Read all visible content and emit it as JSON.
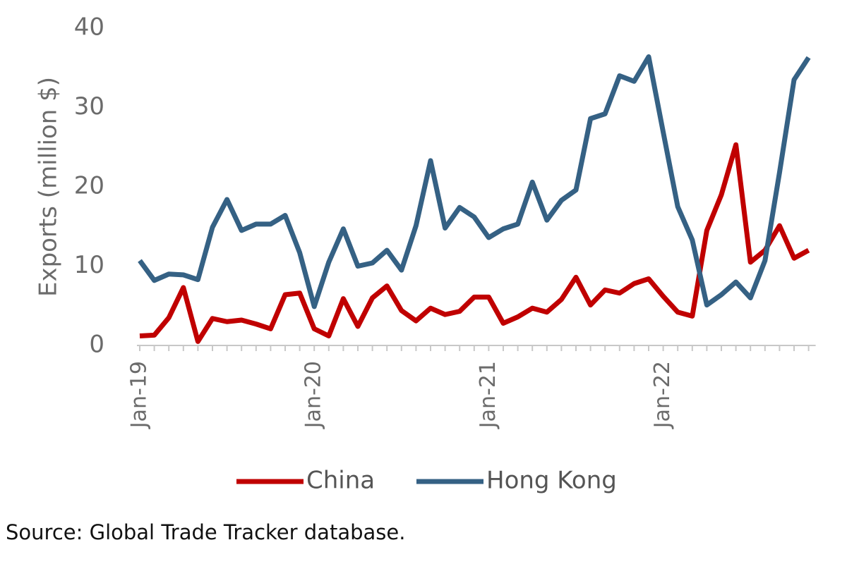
{
  "chart_data": {
    "type": "line",
    "y_label": "Exports (million $)",
    "source": "Source: Global Trade Tracker database.",
    "categories": [
      "Jan-19",
      null,
      null,
      null,
      null,
      null,
      null,
      null,
      null,
      null,
      null,
      null,
      "Jan-20",
      null,
      null,
      null,
      null,
      null,
      null,
      null,
      null,
      null,
      null,
      null,
      "Jan-21",
      null,
      null,
      null,
      null,
      null,
      null,
      null,
      null,
      null,
      null,
      null,
      "Jan-22",
      null,
      null,
      null,
      null,
      null,
      null,
      null,
      null,
      null,
      null
    ],
    "series": [
      {
        "name": "China",
        "color": "#c00000",
        "values": [
          1.2,
          1.3,
          3.5,
          7.3,
          0.5,
          3.4,
          3.0,
          3.2,
          2.7,
          2.1,
          6.4,
          6.6,
          2.1,
          1.2,
          5.9,
          2.4,
          6.0,
          7.5,
          4.4,
          3.1,
          4.7,
          3.9,
          4.3,
          6.1,
          6.1,
          2.8,
          3.6,
          4.7,
          4.2,
          5.8,
          8.6,
          5.1,
          7.0,
          6.6,
          7.8,
          8.4,
          6.2,
          4.2,
          3.7,
          14.5,
          19.0,
          25.3,
          10.5,
          12.0,
          15.1,
          11.0,
          12.0
        ]
      },
      {
        "name": "Hong Kong",
        "color": "#356184",
        "values": [
          10.7,
          8.2,
          9.0,
          8.9,
          8.3,
          14.9,
          18.4,
          14.5,
          15.3,
          15.3,
          16.4,
          11.7,
          4.9,
          10.5,
          14.7,
          10.0,
          10.4,
          12.0,
          9.5,
          15.1,
          23.3,
          14.8,
          17.4,
          16.2,
          13.6,
          14.7,
          15.3,
          20.6,
          15.8,
          18.3,
          19.6,
          28.6,
          29.2,
          34.0,
          33.3,
          36.4,
          26.9,
          17.5,
          13.3,
          5.1,
          6.4,
          8.0,
          6.0,
          10.7,
          21.8,
          33.5,
          36.3
        ]
      }
    ],
    "ylim": [
      0,
      40
    ],
    "yticks": [
      0,
      10,
      20,
      30,
      40
    ],
    "grid": false,
    "legend": "bottom"
  }
}
